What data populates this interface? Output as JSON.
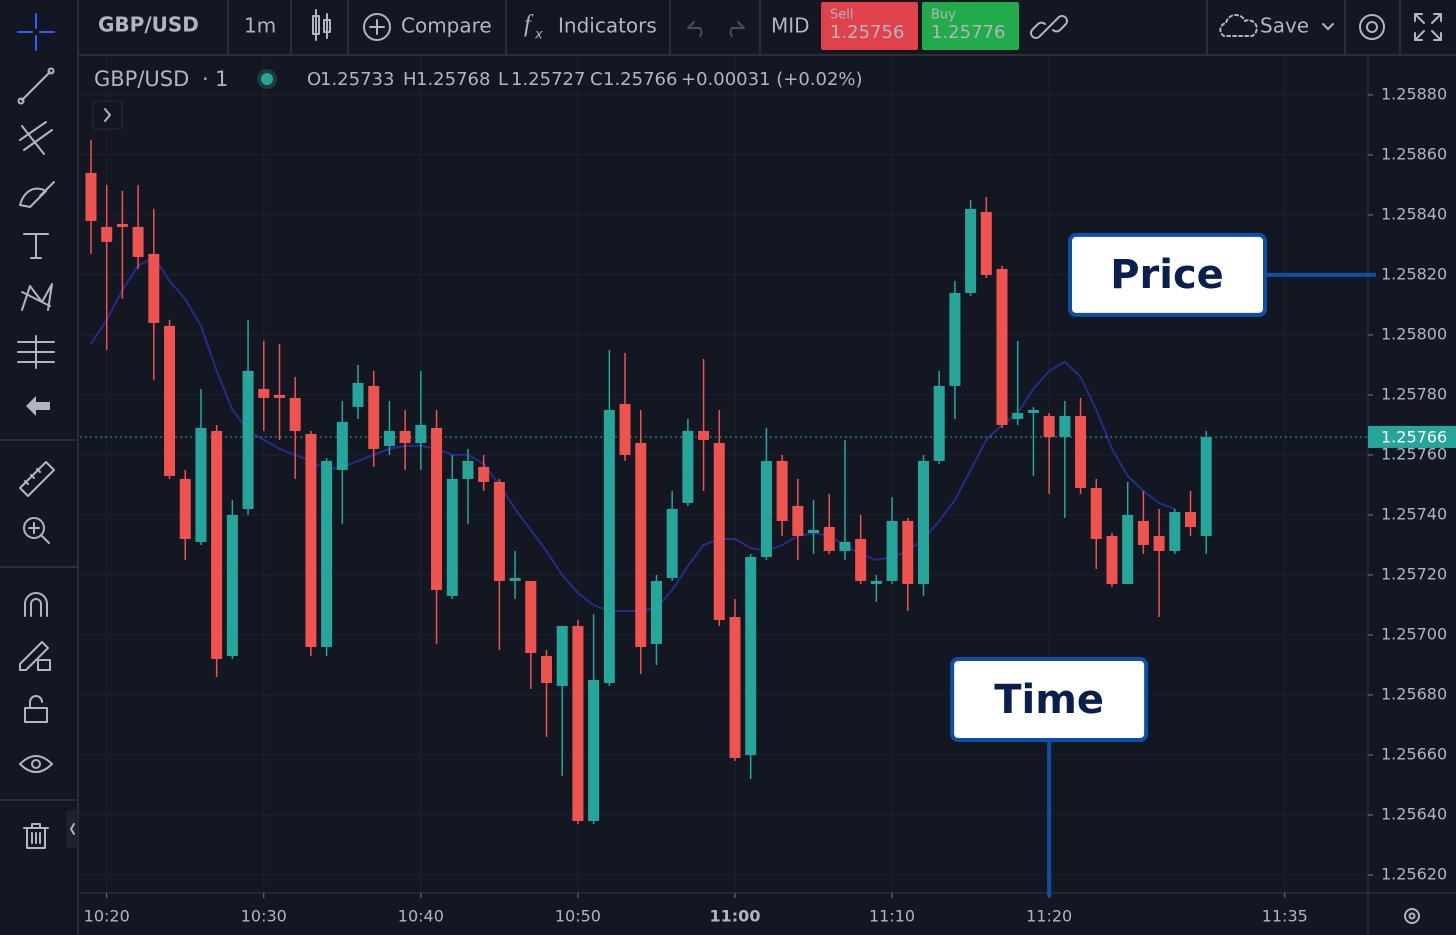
{
  "toolbar": {
    "symbol": "GBP/USD",
    "interval": "1m",
    "compare": "Compare",
    "indicators": "Indicators",
    "mid": "MID",
    "sell": {
      "label": "Sell",
      "price": "1.25756"
    },
    "buy": {
      "label": "Buy",
      "price": "1.25776"
    },
    "save": "Save"
  },
  "chart_header": {
    "symbol": "GBP/USD",
    "interval": "1",
    "ohlc": [
      {
        "key": "O",
        "value": "1.25733"
      },
      {
        "key": "H",
        "value": "1.25768"
      },
      {
        "key": "L",
        "value": "1.25727"
      },
      {
        "key": "C",
        "value": "1.25766"
      }
    ],
    "change": "+0.00031 (+0.02%)"
  },
  "chart_data": {
    "type": "candlestick",
    "up_color": "#26a69a",
    "down_color": "#ef5350",
    "x": [
      619,
      620,
      621,
      622,
      623,
      624,
      625,
      626,
      627,
      628,
      629,
      630,
      631,
      632,
      633,
      634,
      635,
      636,
      637,
      638,
      639,
      640,
      641,
      642,
      643,
      644,
      645,
      646,
      647,
      648,
      649,
      650,
      651,
      652,
      653,
      654,
      655,
      656,
      657,
      658,
      659,
      660,
      661,
      662,
      663,
      664,
      665,
      666,
      667,
      668,
      669,
      670,
      671,
      672,
      673,
      674,
      675,
      676,
      677,
      678,
      679,
      680,
      681,
      682,
      683,
      684,
      685,
      686,
      687,
      688,
      689,
      690
    ],
    "open": [
      1.25854,
      1.25836,
      1.25837,
      1.25836,
      1.25827,
      1.25803,
      1.25752,
      1.25731,
      1.25768,
      1.25693,
      1.25742,
      1.25782,
      1.2578,
      1.25779,
      1.25767,
      1.25696,
      1.25755,
      1.25776,
      1.25783,
      1.25763,
      1.25768,
      1.25764,
      1.25769,
      1.25713,
      1.25752,
      1.25756,
      1.25751,
      1.25718,
      1.25718,
      1.25693,
      1.25683,
      1.25703,
      1.25638,
      1.25684,
      1.25777,
      1.25764,
      1.25697,
      1.25719,
      1.25744,
      1.25768,
      1.25764,
      1.25706,
      1.2566,
      1.25726,
      1.25758,
      1.25743,
      1.25734,
      1.25736,
      1.25728,
      1.25732,
      1.25717,
      1.25718,
      1.25738,
      1.25717,
      1.25758,
      1.25783,
      1.25814,
      1.25841,
      1.25822,
      1.25772,
      1.25774,
      1.25773,
      1.25766,
      1.25773,
      1.25749,
      1.25733,
      1.25717,
      1.25738,
      1.25733,
      1.25728,
      1.25741,
      1.25733
    ],
    "high": [
      1.25865,
      1.2585,
      1.25848,
      1.2585,
      1.25842,
      1.25805,
      1.25755,
      1.25782,
      1.2577,
      1.25745,
      1.25805,
      1.25798,
      1.25797,
      1.25786,
      1.25768,
      1.25759,
      1.25778,
      1.2579,
      1.25788,
      1.25778,
      1.25775,
      1.25788,
      1.25775,
      1.2576,
      1.25762,
      1.2576,
      1.25752,
      1.25728,
      1.25718,
      1.25695,
      1.25703,
      1.25705,
      1.25707,
      1.25795,
      1.25794,
      1.25775,
      1.2572,
      1.25748,
      1.25772,
      1.25792,
      1.25775,
      1.25712,
      1.25727,
      1.25769,
      1.2576,
      1.25752,
      1.25745,
      1.25747,
      1.25765,
      1.2574,
      1.2572,
      1.25746,
      1.25739,
      1.2576,
      1.25788,
      1.25818,
      1.25845,
      1.25846,
      1.25823,
      1.25798,
      1.25776,
      1.25774,
      1.25778,
      1.25779,
      1.25752,
      1.25734,
      1.25751,
      1.25748,
      1.25742,
      1.25742,
      1.25748,
      1.25768
    ],
    "low": [
      1.25827,
      1.25795,
      1.25812,
      1.25822,
      1.25785,
      1.25752,
      1.25725,
      1.2573,
      1.25686,
      1.25692,
      1.2574,
      1.25768,
      1.25765,
      1.25752,
      1.25693,
      1.25693,
      1.25737,
      1.25772,
      1.25756,
      1.2576,
      1.25755,
      1.25755,
      1.25697,
      1.25712,
      1.25737,
      1.25748,
      1.25695,
      1.25712,
      1.25682,
      1.25666,
      1.25653,
      1.25637,
      1.25637,
      1.25683,
      1.25758,
      1.25687,
      1.2569,
      1.25718,
      1.25743,
      1.25748,
      1.25703,
      1.25658,
      1.25652,
      1.25725,
      1.25733,
      1.25725,
      1.25727,
      1.25727,
      1.25725,
      1.25717,
      1.25711,
      1.25717,
      1.25708,
      1.25713,
      1.25757,
      1.25772,
      1.25813,
      1.25819,
      1.25769,
      1.2577,
      1.25753,
      1.25747,
      1.25739,
      1.25747,
      1.25722,
      1.25716,
      1.25717,
      1.25727,
      1.25706,
      1.25727,
      1.25733,
      1.25727
    ],
    "close": [
      1.25838,
      1.25831,
      1.25836,
      1.25826,
      1.25804,
      1.25753,
      1.25732,
      1.25769,
      1.25692,
      1.2574,
      1.25788,
      1.25779,
      1.25779,
      1.25768,
      1.25696,
      1.25758,
      1.25771,
      1.25784,
      1.25762,
      1.25768,
      1.25764,
      1.2577,
      1.25715,
      1.25752,
      1.25758,
      1.25751,
      1.25718,
      1.25719,
      1.25694,
      1.25684,
      1.25703,
      1.25638,
      1.25685,
      1.25775,
      1.2576,
      1.25696,
      1.25718,
      1.25742,
      1.25768,
      1.25765,
      1.25705,
      1.25659,
      1.25726,
      1.25758,
      1.25738,
      1.25733,
      1.25735,
      1.25728,
      1.25731,
      1.25718,
      1.25718,
      1.25738,
      1.25717,
      1.25758,
      1.25783,
      1.25814,
      1.25842,
      1.2582,
      1.2577,
      1.25774,
      1.25775,
      1.25766,
      1.25773,
      1.25749,
      1.25732,
      1.25717,
      1.2574,
      1.2573,
      1.25728,
      1.25741,
      1.25736,
      1.25766
    ],
    "ma": {
      "color": "#252c8a",
      "values": [
        1.25797,
        1.25805,
        1.25815,
        1.25823,
        1.25826,
        1.25818,
        1.25812,
        1.25803,
        1.25788,
        1.25775,
        1.25768,
        1.25765,
        1.25762,
        1.2576,
        1.25758,
        1.25755,
        1.25756,
        1.25758,
        1.2576,
        1.25762,
        1.25763,
        1.25763,
        1.25762,
        1.2576,
        1.2576,
        1.25757,
        1.2575,
        1.25742,
        1.25735,
        1.25728,
        1.2572,
        1.25714,
        1.2571,
        1.25708,
        1.25708,
        1.25708,
        1.25709,
        1.25715,
        1.25723,
        1.2573,
        1.25732,
        1.25732,
        1.25729,
        1.25728,
        1.2573,
        1.25733,
        1.25734,
        1.25733,
        1.2573,
        1.25727,
        1.25725,
        1.25726,
        1.25728,
        1.25732,
        1.25738,
        1.25745,
        1.25755,
        1.25765,
        1.2577,
        1.25774,
        1.25782,
        1.25788,
        1.25791,
        1.25786,
        1.25775,
        1.25762,
        1.25753,
        1.25748,
        1.25744,
        1.25742,
        null,
        null
      ]
    },
    "price_line": 1.25766,
    "price_line_color": "#26a69a",
    "xlim": [
      618.3,
      700.3
    ],
    "ylim": [
      1.25614,
      1.258933
    ],
    "xticks": [
      {
        "value": 620,
        "label": "10:20"
      },
      {
        "value": 630,
        "label": "10:30"
      },
      {
        "value": 640,
        "label": "10:40"
      },
      {
        "value": 650,
        "label": "10:50"
      },
      {
        "value": 660,
        "label": "11:00"
      },
      {
        "value": 670,
        "label": "11:10"
      },
      {
        "value": 680,
        "label": "11:20"
      },
      {
        "value": 695,
        "label": "11:35"
      }
    ],
    "yticks": [
      {
        "value": 1.2588,
        "label": "1.25880"
      },
      {
        "value": 1.2586,
        "label": "1.25860"
      },
      {
        "value": 1.2584,
        "label": "1.25840"
      },
      {
        "value": 1.2582,
        "label": "1.25820"
      },
      {
        "value": 1.258,
        "label": "1.25800"
      },
      {
        "value": 1.2578,
        "label": "1.25780"
      },
      {
        "value": 1.2576,
        "label": "1.25760"
      },
      {
        "value": 1.2574,
        "label": "1.25740"
      },
      {
        "value": 1.2572,
        "label": "1.25720"
      },
      {
        "value": 1.257,
        "label": "1.25700"
      },
      {
        "value": 1.2568,
        "label": "1.25680"
      },
      {
        "value": 1.2566,
        "label": "1.25660"
      },
      {
        "value": 1.2564,
        "label": "1.25640"
      },
      {
        "value": 1.2562,
        "label": "1.25620"
      }
    ],
    "grid": true,
    "annotations": [
      {
        "text": "Price",
        "y": 1.2582
      },
      {
        "text": "Time",
        "x": 680
      }
    ]
  }
}
